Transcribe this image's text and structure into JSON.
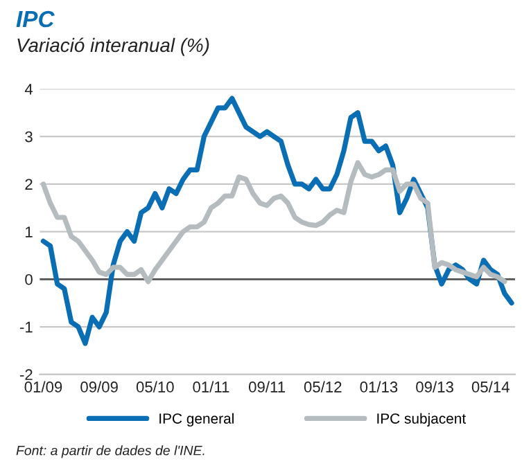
{
  "chart_data": {
    "type": "line",
    "title": "IPC",
    "subtitle": "Variació interanual (%)",
    "categories": [
      "01/09",
      null,
      null,
      null,
      null,
      null,
      null,
      null,
      "09/09",
      null,
      null,
      null,
      null,
      null,
      null,
      null,
      "05/10",
      null,
      null,
      null,
      null,
      null,
      null,
      null,
      "01/11",
      null,
      null,
      null,
      null,
      null,
      null,
      null,
      "09/11",
      null,
      null,
      null,
      null,
      null,
      null,
      null,
      "05/12",
      null,
      null,
      null,
      null,
      null,
      null,
      null,
      "01/13",
      null,
      null,
      null,
      null,
      null,
      null,
      null,
      "09/13",
      null,
      null,
      null,
      null,
      null,
      null,
      null,
      "05/14",
      null,
      null,
      null
    ],
    "series": [
      {
        "name": "IPC general",
        "color": "#0a6eb4",
        "values": [
          0.8,
          0.7,
          -0.1,
          -0.2,
          -0.9,
          -1.0,
          -1.35,
          -0.8,
          -1.0,
          -0.7,
          0.3,
          0.8,
          1.0,
          0.8,
          1.4,
          1.5,
          1.8,
          1.5,
          1.9,
          1.8,
          2.1,
          2.3,
          2.3,
          3.0,
          3.3,
          3.6,
          3.6,
          3.8,
          3.5,
          3.2,
          3.1,
          3.0,
          3.1,
          3.0,
          2.9,
          2.4,
          2.0,
          2.0,
          1.9,
          2.1,
          1.9,
          1.9,
          2.2,
          2.7,
          3.4,
          3.5,
          2.9,
          2.9,
          2.7,
          2.8,
          2.4,
          1.4,
          1.7,
          2.1,
          1.8,
          1.5,
          0.3,
          -0.1,
          0.2,
          0.3,
          0.2,
          0.0,
          -0.1,
          0.4,
          0.2,
          0.1,
          -0.3,
          -0.5
        ]
      },
      {
        "name": "IPC subjacent",
        "color": "#b4bcc0",
        "values": [
          2.0,
          1.6,
          1.3,
          1.3,
          0.9,
          0.8,
          0.6,
          0.4,
          0.15,
          0.1,
          0.25,
          0.25,
          0.1,
          0.1,
          0.2,
          -0.05,
          0.2,
          0.4,
          0.6,
          0.8,
          1.0,
          1.1,
          1.1,
          1.2,
          1.5,
          1.6,
          1.75,
          1.75,
          2.15,
          2.1,
          1.8,
          1.6,
          1.55,
          1.7,
          1.75,
          1.6,
          1.3,
          1.2,
          1.15,
          1.13,
          1.2,
          1.35,
          1.45,
          1.4,
          2.05,
          2.45,
          2.2,
          2.15,
          2.2,
          2.3,
          2.3,
          1.85,
          2.0,
          2.0,
          1.7,
          1.6,
          0.25,
          0.35,
          0.3,
          0.2,
          0.15,
          0.1,
          0.05,
          0.25,
          0.1,
          0.05,
          -0.05,
          null
        ]
      }
    ],
    "ylim": [
      -2,
      4
    ],
    "yticks": [
      -2,
      -1,
      0,
      1,
      2,
      3,
      4
    ],
    "grid": "y",
    "legend": "bottom",
    "ref_lines": [
      {
        "axis": "y",
        "value": 0,
        "color": "#555555"
      }
    ],
    "annotations": [
      "Font: a partir de dades de l'INE."
    ]
  }
}
